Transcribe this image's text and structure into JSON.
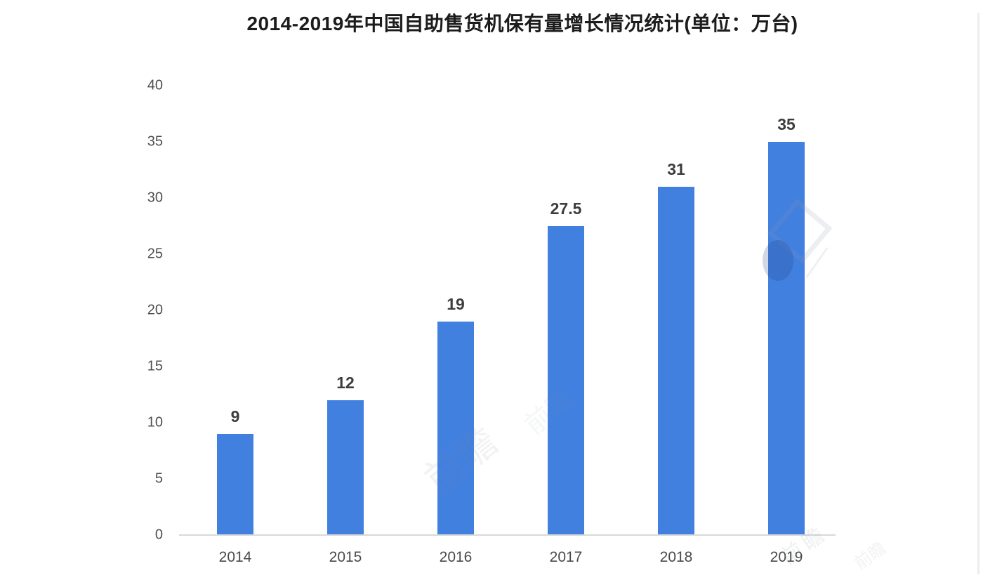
{
  "chart_data": {
    "type": "bar",
    "title": "2014-2019年中国自助售货机保有量增长情况统计(单位：万台)",
    "categories": [
      "2014",
      "2015",
      "2016",
      "2017",
      "2018",
      "2019"
    ],
    "values": [
      9,
      12,
      19,
      27.5,
      31,
      35
    ],
    "value_labels": [
      "9",
      "12",
      "19",
      "27.5",
      "31",
      "35"
    ],
    "yticks": [
      0,
      5,
      10,
      15,
      20,
      25,
      30,
      35,
      40
    ],
    "ylim": [
      0,
      40
    ],
    "xlabel": "",
    "ylabel": "",
    "grid": false,
    "legend": "none",
    "bar_color": "#4280df",
    "axis_line_color": "#d8d8d8",
    "tick_label_color": "#4f4f4f",
    "value_label_color": "#3d3d3d",
    "title_color": "#1c1c1c"
  },
  "watermark": {
    "text": "前瞻"
  }
}
